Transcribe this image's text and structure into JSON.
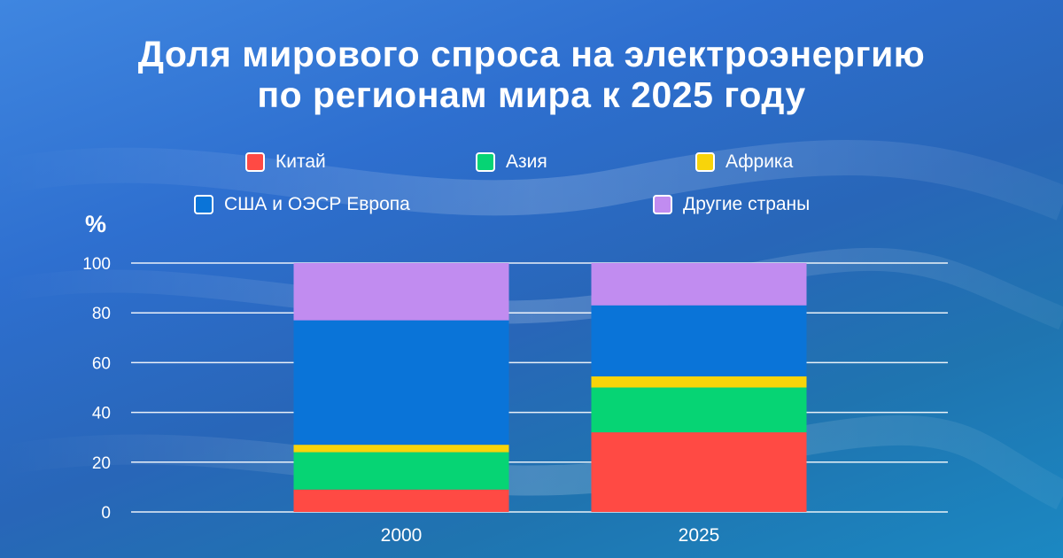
{
  "chart_data": {
    "type": "bar",
    "stacked": true,
    "title": [
      "Доля мирового спроса на электроэнергию",
      "по регионам мира к 2025 году"
    ],
    "ylabel": "%",
    "ylim": [
      0,
      100
    ],
    "yticks": [
      "0",
      "20",
      "40",
      "60",
      "80",
      "100"
    ],
    "categories": [
      "2000",
      "2025"
    ],
    "series": [
      {
        "name": "Китай",
        "color": "#ff4a44",
        "values": [
          9,
          32
        ]
      },
      {
        "name": "Азия",
        "color": "#06d474",
        "values": [
          15,
          18
        ]
      },
      {
        "name": "Африка",
        "color": "#f8d40a",
        "values": [
          3,
          4.5
        ]
      },
      {
        "name": "США и ОЭСР Европа",
        "color": "#0a74d8",
        "values": [
          50,
          28.5
        ]
      },
      {
        "name": "Другие страны",
        "color": "#c18cf0",
        "values": [
          23,
          17
        ]
      }
    ],
    "grid": true,
    "legend_position": "top"
  }
}
